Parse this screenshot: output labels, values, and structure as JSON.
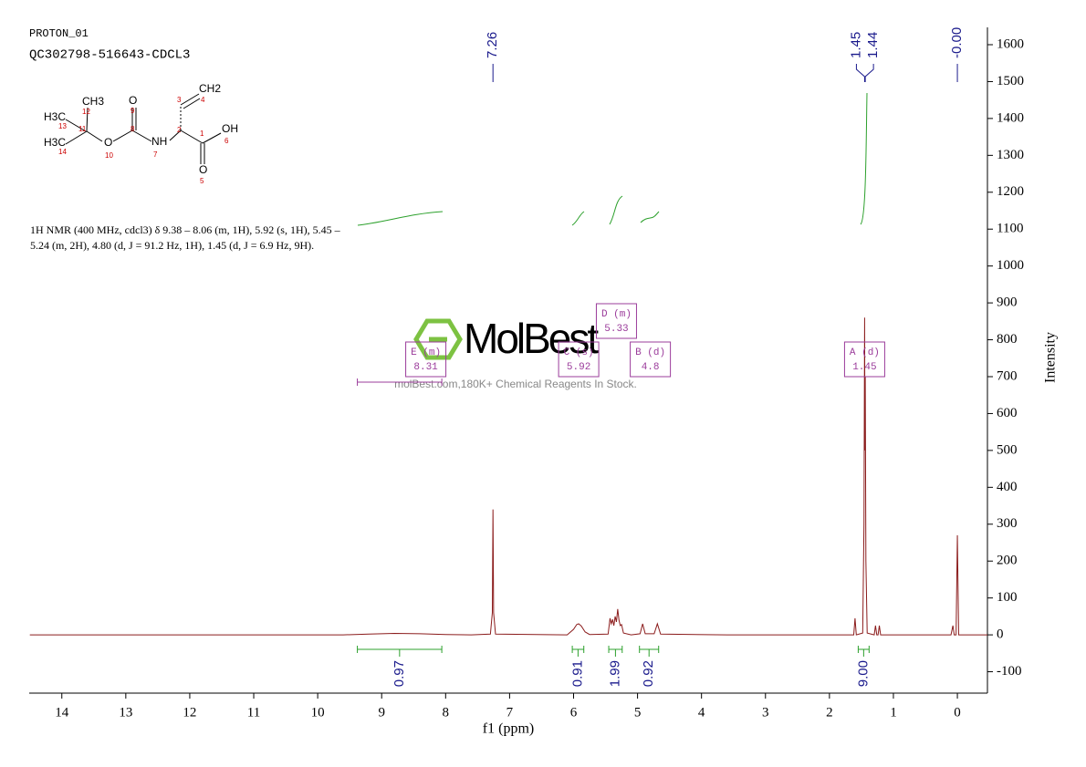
{
  "chart_data": {
    "type": "line",
    "title": "PROTON_01",
    "subtitle": "QC302798-516643-CDCL3",
    "x_label": "f1 (ppm)",
    "y_label": "Intensity",
    "xlim": [
      14.51,
      -0.47
    ],
    "ylim": [
      -158,
      1647
    ],
    "xticks": [
      14,
      13,
      12,
      11,
      10,
      9,
      8,
      7,
      6,
      5,
      4,
      3,
      2,
      1,
      0
    ],
    "yticks": [
      -100,
      0,
      100,
      200,
      300,
      400,
      500,
      600,
      700,
      800,
      900,
      1000,
      1100,
      1200,
      1300,
      1400,
      1500,
      1600
    ],
    "series": [
      {
        "color": "#8b1c1c",
        "x": [
          14.5,
          9.6,
          9.2,
          8.8,
          8.4,
          8.0,
          7.6,
          7.3,
          7.27,
          7.26,
          7.25,
          7.22,
          6.1,
          6.0,
          5.95,
          5.92,
          5.88,
          5.82,
          5.75,
          5.46,
          5.43,
          5.41,
          5.39,
          5.37,
          5.35,
          5.33,
          5.31,
          5.29,
          5.27,
          5.25,
          5.22,
          5.1,
          4.96,
          4.92,
          4.88,
          4.74,
          4.69,
          4.64,
          3.6,
          1.62,
          1.6,
          1.58,
          1.48,
          1.46,
          1.45,
          1.445,
          1.44,
          1.43,
          1.41,
          1.3,
          1.28,
          1.26,
          1.24,
          1.22,
          1.2,
          0.1,
          0.07,
          0.05,
          0.02,
          0.0,
          -0.02,
          -0.47
        ],
        "values": [
          0,
          0,
          2,
          4,
          3,
          1,
          0,
          2,
          60,
          340,
          60,
          2,
          0,
          15,
          28,
          30,
          24,
          8,
          1,
          2,
          45,
          30,
          42,
          25,
          50,
          35,
          70,
          40,
          25,
          28,
          5,
          0,
          3,
          30,
          3,
          3,
          30,
          2,
          0,
          0,
          45,
          0,
          5,
          300,
          860,
          500,
          700,
          200,
          5,
          0,
          25,
          0,
          0,
          25,
          0,
          0,
          25,
          0,
          0,
          270,
          0,
          0
        ]
      }
    ],
    "peak_labels": [
      7.26,
      1.45,
      1.44,
      {
        "value": 0,
        "label": "-0.00"
      }
    ],
    "integrals": {
      "values": [
        0.97,
        0.91,
        1.99,
        0.92,
        9
      ],
      "value_labels": [
        "0.97",
        "0.91",
        "1.99",
        "0.92",
        "9.00"
      ],
      "from": [
        9.38,
        6.02,
        5.45,
        4.97,
        1.55
      ],
      "to": [
        8.06,
        5.84,
        5.24,
        4.67,
        1.38
      ]
    },
    "multiplets": {
      "names": [
        "E (m)",
        "C (s)",
        "D (m)",
        "B (d)",
        "A (d)"
      ],
      "shifts": [
        8.31,
        5.92,
        5.33,
        4.8,
        1.45
      ]
    },
    "description": "1H NMR (400 MHz, cdcl3) δ 9.38 – 8.06 (m, 1H), 5.92 (s, 1H), 5.45 – 5.24 (m, 2H), 4.80 (d, J = 91.2 Hz, 1H), 1.45 (d, J = 6.9 Hz, 9H).",
    "watermark": {
      "brand": "MolBest",
      "tagline": "molBest.com,180K+ Chemical Reagents In Stock."
    },
    "structure": {
      "atoms": [
        "H3C",
        "13",
        "CH3",
        "12",
        "11",
        "H3C",
        "14",
        "O",
        "10",
        "O",
        "9",
        "8",
        "NH",
        "7",
        "2",
        "3",
        "CH2",
        "4",
        "1",
        "OH",
        "6",
        "O",
        "5"
      ]
    }
  }
}
